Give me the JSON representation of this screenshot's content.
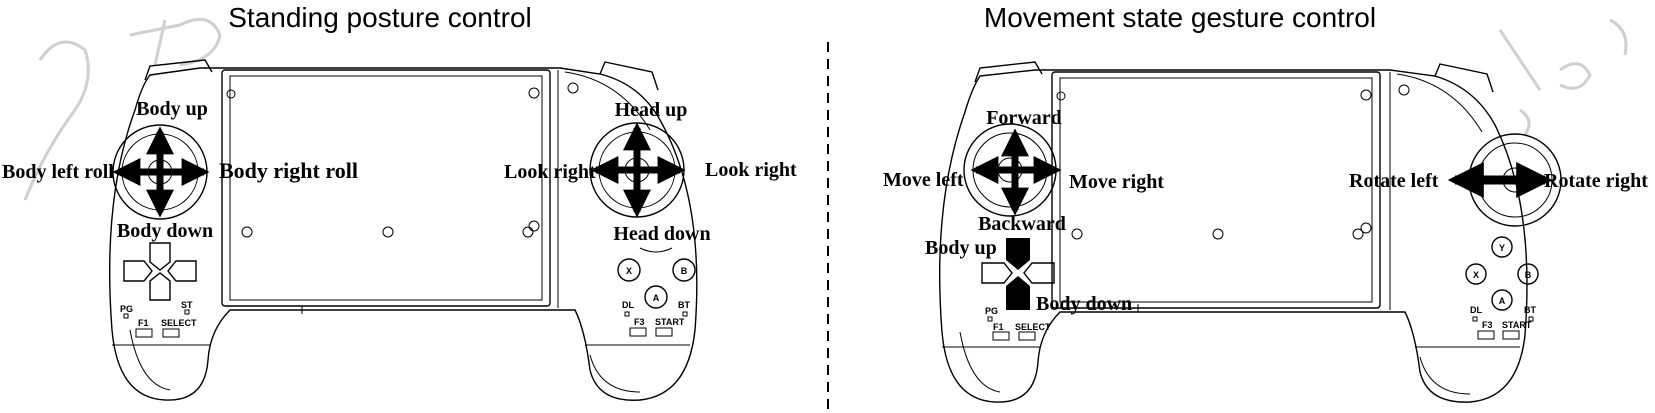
{
  "left_panel": {
    "title": "Standing posture control",
    "labels": {
      "top": "Body up",
      "bottom": "Body down",
      "left": "Body left roll",
      "right": "Body right roll",
      "right_stick_top": "Head up",
      "right_stick_bottom": "Head down",
      "right_stick_left": "Look right",
      "right_stick_right": "Look right"
    }
  },
  "right_panel": {
    "title": "Movement state gesture control",
    "labels": {
      "top": "Forward",
      "bottom": "Backward",
      "left": "Move left",
      "right": "Move right",
      "dpad_up": "Body up",
      "dpad_down": "Body down",
      "rotate_left": "Rotate left",
      "rotate_right": "Rotate right"
    }
  },
  "controller_marks": {
    "pg": "PG",
    "st": "ST",
    "f1": "F1",
    "select": "SELECT",
    "dl": "DL",
    "bt": "BT",
    "f3": "F3",
    "start": "START",
    "x": "X",
    "a": "A",
    "b": "B",
    "y": "Y"
  },
  "colors": {
    "ink": "#000000",
    "watermark": "#cfcfcf",
    "background": "#ffffff"
  }
}
